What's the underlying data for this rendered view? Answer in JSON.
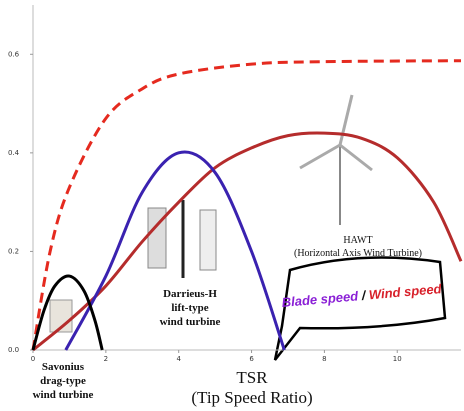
{
  "chart_data": {
    "type": "line",
    "xlim": [
      0,
      11.75
    ],
    "ylim": [
      0,
      0.7
    ],
    "xticks": [
      0,
      2,
      4,
      6,
      8,
      10
    ],
    "yticks": [
      {
        "value": 0,
        "label": "0.0"
      },
      0.2,
      0.4,
      0.6
    ],
    "x_title": [
      "TSR",
      "(Tip Speed Ratio)"
    ],
    "callout": [
      {
        "text": "Blade speed",
        "color": "#8a1fd6"
      },
      {
        "text": " / ",
        "color": "#111111"
      },
      {
        "text": "Wind speed",
        "color": "#d8202a"
      }
    ],
    "series": [
      {
        "color": "#e52a1f",
        "dashed": true,
        "x": [
          0,
          0.47,
          1,
          2,
          3,
          4,
          6,
          8,
          11.75
        ],
        "values": [
          0,
          0.2,
          0.33,
          0.47,
          0.53,
          0.56,
          0.58,
          0.585,
          0.587
        ]
      },
      {
        "color": "#b52c2c",
        "dashed": false,
        "label": [
          "HAWT",
          "(Horizontal Axis Wind Turbine)"
        ],
        "x": [
          0,
          1,
          2,
          3,
          4,
          5,
          6,
          7,
          8,
          9,
          10,
          11,
          11.75
        ],
        "values": [
          0,
          0.06,
          0.13,
          0.22,
          0.3,
          0.37,
          0.41,
          0.435,
          0.44,
          0.43,
          0.39,
          0.3,
          0.18
        ]
      },
      {
        "color": "#3a22b0",
        "dashed": false,
        "label": [
          "Darrieus-H",
          "lift-type",
          "wind turbine"
        ],
        "x": [
          0.9,
          2,
          3,
          4,
          5,
          6,
          6.9
        ],
        "values": [
          0,
          0.15,
          0.32,
          0.4,
          0.36,
          0.2,
          0
        ]
      },
      {
        "color": "#000000",
        "dashed": false,
        "label": [
          "Savonius",
          "drag-type",
          "wind turbine"
        ],
        "x": [
          0,
          0.3,
          0.6,
          1,
          1.4,
          1.7,
          1.9
        ],
        "values": [
          0,
          0.08,
          0.13,
          0.15,
          0.12,
          0.06,
          0
        ]
      }
    ]
  }
}
